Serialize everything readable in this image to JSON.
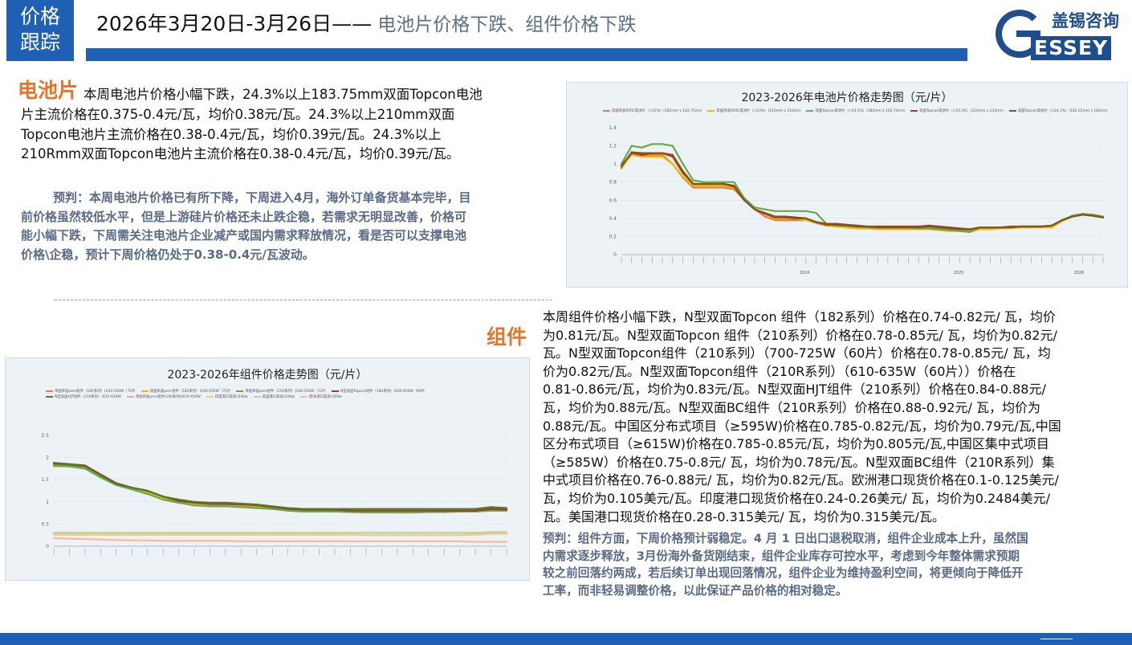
{
  "header": {
    "tag_line1": "价格",
    "tag_line2": "跟踪",
    "date_range": "2026年3月20日-3月26日——",
    "headline": " 电池片价格下跌、组件价格下跌",
    "logo_cn": "盖锡咨询",
    "logo_en": "ESSEY",
    "logo_g": "G",
    "colors": {
      "blue": "#1f5fb4",
      "orange": "#e5742a",
      "grey_blue": "#5a6b86"
    }
  },
  "cell": {
    "label": "电池片",
    "lines": [
      "本周电池片价格小幅下跌，24.3%以上183.75mm双面Topcon电池",
      "片主流价格在0.375-0.4元/瓦，均价0.38元/瓦。24.3%以上210mm双面",
      "Topcon电池片主流价格在0.38-0.4元/瓦，均价0.39元/瓦。24.3%以上",
      "210Rmm双面Topcon电池片主流价格在0.38-0.4元/瓦，均价0.39元/瓦。"
    ],
    "forecast_lines": [
      "预判：本周电池片价格已有所下降，下周进入4月，海外订单备货基本完毕，目",
      "前价格虽然较低水平，但是上游硅片价格还未止跌企稳，若需求无明显改善，价格可",
      "能小幅下跌，下周需关注电池片企业减产或国内需求释放情况，看是否可以支撑电池",
      "价格\\企稳，预计下周价格仍处于0.38-0.4元/瓦波动。"
    ]
  },
  "module": {
    "label": "组件",
    "lines": [
      "本周组件价格小幅下跌，N型双面Topcon 组件（182系列）价格在0.74-0.82元/ 瓦，均价",
      "为0.81元/瓦。N型双面Topcon 组件（210系列）价格在0.78-0.85元/ 瓦，均价为0.82元/",
      "瓦。N型双面Topcon组件（210系列）（700-725W（60片）价格在0.78-0.85元/ 瓦，均",
      "价为0.82元/瓦。N型双面Topcon组件（210R系列）（610-635W（60片））价格在",
      "0.81-0.86元/瓦，均价为0.83元/瓦。N型双面HJT组件（210系列）价格在0.84-0.88元/",
      "瓦，均价为0.88元/瓦。N型双面BC组件（210R系列）价格在0.88-0.92元/ 瓦，均价为",
      "0.88元/瓦。中国区分布式项目（≥595W)价格在0.785-0.82元/瓦，均价为0.79元/瓦,中国",
      "区分布式项目（≥615W)价格在0.785-0.85元/瓦，均价为0.805元/瓦,中国区集中式项目",
      "（≥585W）价格在0.75-0.8元/ 瓦，均价为0.78元/瓦。N型双面BC组件（210R系列）集",
      "中式项目价格在0.76-0.88元/ 瓦，均价为0.82元/瓦。欧洲港口现货价格在0.1-0.125美元/",
      "瓦，均价为0.105美元/瓦。印度港口现货价格在0.24-0.26美元/ 瓦，均价为0.2484美元/",
      "瓦。美国港口现货价格在0.28-0.315美元/ 瓦，均价为0.315美元/瓦。"
    ],
    "forecast_lines": [
      "预判：组件方面，下周价格预计弱稳定。4 月 1 日出口退税取消，组件企业成本上升，虽然国",
      "内需求逐步释放，3月份海外备货刚结束，组件企业库存可控水平，考虑到今年整体需求预期",
      "较之前回落约两成，若后续订单出现回落情况，组件企业为维持盈利空间，将更倾向于降低开",
      "工率，而非轻易调整价格，以此保证产品价格的相对稳定。"
    ]
  },
  "chart_data": [
    {
      "type": "line",
      "title": "2023-2026年电池片价格走势图（元/片）",
      "ylim": [
        0,
        1.4
      ],
      "yticks": [
        "0",
        "0.2",
        "0.4",
        "0.6",
        "0.8",
        "1",
        "1.2",
        "1.4"
      ],
      "year_labels": [
        "2024",
        "2025",
        "2026"
      ],
      "legend_position": "top",
      "series": [
        {
          "name": "双面单晶PERC电池片（>23%）(182mm x 183.75mm",
          "color": "#f07c3c",
          "values": [
            0.95,
            1.12,
            1.1,
            1.1,
            1.1,
            1.0,
            0.85,
            0.74,
            0.74,
            0.74,
            0.74,
            0.72,
            0.6,
            0.5,
            0.42,
            0.38,
            0.38,
            0.38,
            0.38,
            0.35,
            0.32,
            0.31,
            0.3,
            0.29,
            0.29,
            0.29,
            0.29,
            0.29,
            0.29,
            0.29,
            0.29,
            0.29,
            0.28,
            0.27,
            0.27,
            0.29,
            0.29,
            0.29,
            0.3,
            0.3,
            0.3,
            0.31,
            0.32,
            0.38,
            0.42,
            0.44,
            0.43,
            0.41
          ]
        },
        {
          "name": "双面单晶PERC电池片（>23%）(210mm x 210mm",
          "color": "#f5b800",
          "values": [
            0.96,
            1.1,
            1.08,
            1.08,
            1.08,
            1.0,
            0.86,
            0.76,
            0.76,
            0.76,
            0.76,
            0.74,
            0.62,
            0.5,
            0.45,
            0.4,
            0.4,
            0.4,
            0.38,
            0.36,
            0.32,
            0.31,
            0.3,
            0.29,
            0.29,
            0.28,
            0.28,
            0.28,
            0.28,
            0.28,
            0.28,
            0.27,
            0.26,
            0.26,
            0.25,
            0.28,
            0.28,
            0.29,
            0.29,
            0.3,
            0.3,
            0.3,
            0.3,
            0.37,
            0.42,
            0.44,
            0.43,
            0.41
          ]
        },
        {
          "name": "双面Topcon电池片（>24.3%）(182mm x 183.75mm",
          "color": "#6aa84f",
          "values": [
            1.0,
            1.2,
            1.18,
            1.22,
            1.22,
            1.2,
            1.0,
            0.82,
            0.8,
            0.8,
            0.8,
            0.8,
            0.62,
            0.52,
            0.5,
            0.48,
            0.48,
            0.48,
            0.48,
            0.46,
            0.34,
            0.32,
            0.32,
            0.31,
            0.3,
            0.3,
            0.3,
            0.3,
            0.3,
            0.29,
            0.29,
            0.28,
            0.27,
            0.26,
            0.25,
            0.3,
            0.3,
            0.3,
            0.3,
            0.31,
            0.31,
            0.31,
            0.32,
            0.38,
            0.43,
            0.45,
            0.44,
            0.42
          ]
        },
        {
          "name": "双面Topcon电池片（>24.3%）(210mm x 210mm",
          "color": "#a33b2d",
          "values": [
            0.98,
            1.12,
            1.1,
            1.12,
            1.12,
            1.1,
            0.92,
            0.78,
            0.78,
            0.78,
            0.78,
            0.76,
            0.6,
            0.5,
            0.46,
            0.42,
            0.42,
            0.41,
            0.4,
            0.36,
            0.34,
            0.34,
            0.33,
            0.32,
            0.31,
            0.31,
            0.31,
            0.31,
            0.31,
            0.31,
            0.32,
            0.31,
            0.3,
            0.29,
            0.28,
            0.3,
            0.3,
            0.3,
            0.31,
            0.31,
            0.31,
            0.31,
            0.32,
            0.38,
            0.42,
            0.44,
            0.43,
            0.41
          ]
        },
        {
          "name": "双面Topcon电池片（>24.3%）(182.22mm x 182mm",
          "color": "#7a5a1a",
          "values": [
            0.97,
            1.13,
            1.12,
            1.12,
            1.12,
            1.08,
            0.9,
            0.78,
            0.78,
            0.78,
            0.78,
            0.75,
            0.6,
            0.5,
            0.45,
            0.41,
            0.41,
            0.4,
            0.4,
            0.36,
            0.33,
            0.33,
            0.32,
            0.31,
            0.31,
            0.3,
            0.3,
            0.3,
            0.3,
            0.3,
            0.31,
            0.3,
            0.29,
            0.28,
            0.28,
            0.3,
            0.3,
            0.3,
            0.3,
            0.31,
            0.31,
            0.31,
            0.32,
            0.38,
            0.42,
            0.44,
            0.43,
            0.41
          ]
        }
      ]
    },
    {
      "type": "line",
      "title": "2023-2026年组件价格走势图（元/片）",
      "ylim": [
        0,
        2.5
      ],
      "yticks": [
        "0",
        "0.5",
        "1",
        "1.5",
        "2",
        "2.5"
      ],
      "legend_position": "top",
      "series": [
        {
          "name": "单面单晶perc组件（182系列）(540-550W（72片",
          "color": "#f07c3c",
          "values": [
            1.85,
            1.82,
            1.78,
            1.6,
            1.4,
            1.3,
            1.22,
            1.1,
            1.0,
            0.95,
            0.9,
            0.9,
            0.9,
            0.88,
            0.85,
            0.8,
            0.78,
            0.78,
            0.78,
            0.78,
            0.77,
            0.77,
            0.76,
            0.76,
            0.78,
            0.78,
            0.78,
            0.78,
            0.82,
            0.82
          ]
        },
        {
          "name": "双面单晶perc组件（182系列）(540-550W（72片",
          "color": "#f5b800",
          "values": [
            1.8,
            1.8,
            1.76,
            1.58,
            1.4,
            1.3,
            1.2,
            1.1,
            1.0,
            0.95,
            0.9,
            0.9,
            0.9,
            0.88,
            0.85,
            0.82,
            0.8,
            0.8,
            0.8,
            0.8,
            0.8,
            0.8,
            0.8,
            0.79,
            0.8,
            0.8,
            0.8,
            0.8,
            0.84,
            0.83
          ]
        },
        {
          "name": "单面单晶perc组件（210系列）(540-550W（72片",
          "color": "#6aa84f",
          "values": [
            1.82,
            1.8,
            1.75,
            1.55,
            1.38,
            1.28,
            1.18,
            1.05,
            0.98,
            0.92,
            0.9,
            0.9,
            0.88,
            0.86,
            0.84,
            0.8,
            0.78,
            0.78,
            0.78,
            0.77,
            0.76,
            0.76,
            0.76,
            0.76,
            0.77,
            0.77,
            0.78,
            0.78,
            0.8,
            0.8
          ]
        },
        {
          "name": "N型双面Topcon组件（182系列）(630-650W（60片",
          "color": "#a33b2d",
          "values": [
            1.88,
            1.85,
            1.82,
            1.62,
            1.42,
            1.32,
            1.25,
            1.12,
            1.02,
            0.98,
            0.95,
            0.95,
            0.94,
            0.92,
            0.88,
            0.84,
            0.82,
            0.82,
            0.82,
            0.8,
            0.8,
            0.8,
            0.8,
            0.8,
            0.8,
            0.8,
            0.8,
            0.8,
            0.84,
            0.82
          ]
        },
        {
          "name": "N型双面HJT组件（210系列）(615-630W",
          "color": "#4e7a2c",
          "values": [
            1.86,
            1.84,
            1.8,
            1.6,
            1.4,
            1.32,
            1.25,
            1.12,
            1.05,
            1.0,
            0.98,
            0.98,
            0.96,
            0.94,
            0.9,
            0.86,
            0.84,
            0.84,
            0.84,
            0.84,
            0.84,
            0.84,
            0.84,
            0.84,
            0.84,
            0.84,
            0.84,
            0.84,
            0.88,
            0.86
          ]
        },
        {
          "name": "单面单晶perc组件(166系列)(420-450W",
          "color": "#f5a0a0",
          "values": [
            0.3,
            0.3,
            0.3,
            0.3,
            0.3,
            0.3,
            0.3,
            0.3,
            0.3,
            0.3,
            0.3,
            0.3,
            0.3,
            0.3,
            0.3,
            0.3,
            0.3,
            0.3,
            0.3,
            0.3,
            0.3,
            0.3,
            0.3,
            0.3,
            0.3,
            0.3,
            0.3,
            0.3,
            0.3,
            0.3
          ]
        },
        {
          "name": "印度港口现货c540w",
          "color": "#f8c87a",
          "values": [
            0.26,
            0.26,
            0.26,
            0.26,
            0.26,
            0.26,
            0.26,
            0.26,
            0.26,
            0.26,
            0.26,
            0.26,
            0.26,
            0.26,
            0.26,
            0.26,
            0.26,
            0.26,
            0.26,
            0.26,
            0.25,
            0.25,
            0.25,
            0.25,
            0.25,
            0.25,
            0.25,
            0.26,
            0.28,
            0.28
          ]
        },
        {
          "name": "美国港口现货c540w",
          "color": "#b7d7a0",
          "values": [
            0.3,
            0.3,
            0.3,
            0.3,
            0.3,
            0.3,
            0.3,
            0.3,
            0.3,
            0.3,
            0.3,
            0.3,
            0.3,
            0.3,
            0.3,
            0.3,
            0.3,
            0.3,
            0.3,
            0.3,
            0.3,
            0.3,
            0.3,
            0.3,
            0.3,
            0.3,
            0.3,
            0.3,
            0.32,
            0.32
          ]
        },
        {
          "name": "欧洲港口现货c540w",
          "color": "#f7b9a0",
          "values": [
            0.18,
            0.17,
            0.16,
            0.15,
            0.14,
            0.13,
            0.13,
            0.12,
            0.12,
            0.12,
            0.12,
            0.12,
            0.11,
            0.11,
            0.11,
            0.11,
            0.11,
            0.11,
            0.11,
            0.11,
            0.11,
            0.11,
            0.11,
            0.11,
            0.11,
            0.11,
            0.11,
            0.1,
            0.1,
            0.1
          ]
        }
      ]
    }
  ]
}
